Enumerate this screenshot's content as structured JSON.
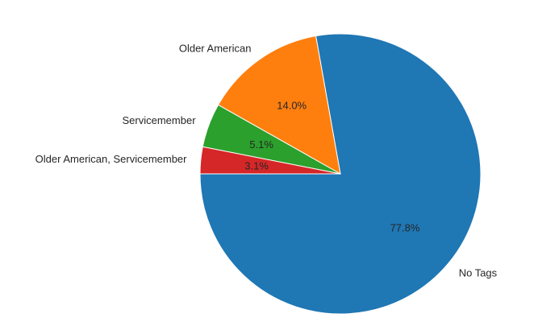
{
  "chart_data": {
    "type": "pie",
    "title": "",
    "start_angle_deg": 180,
    "direction": "counterclockwise",
    "slices": [
      {
        "label": "No Tags",
        "value": 77.8,
        "pct_label": "77.8%",
        "color": "#1f77b4"
      },
      {
        "label": "Older American",
        "value": 14.0,
        "pct_label": "14.0%",
        "color": "#ff7f0e"
      },
      {
        "label": "Servicemember",
        "value": 5.1,
        "pct_label": "5.1%",
        "color": "#2ca02c"
      },
      {
        "label": "Older American, Servicemember",
        "value": 3.1,
        "pct_label": "3.1%",
        "color": "#d62728"
      }
    ]
  }
}
